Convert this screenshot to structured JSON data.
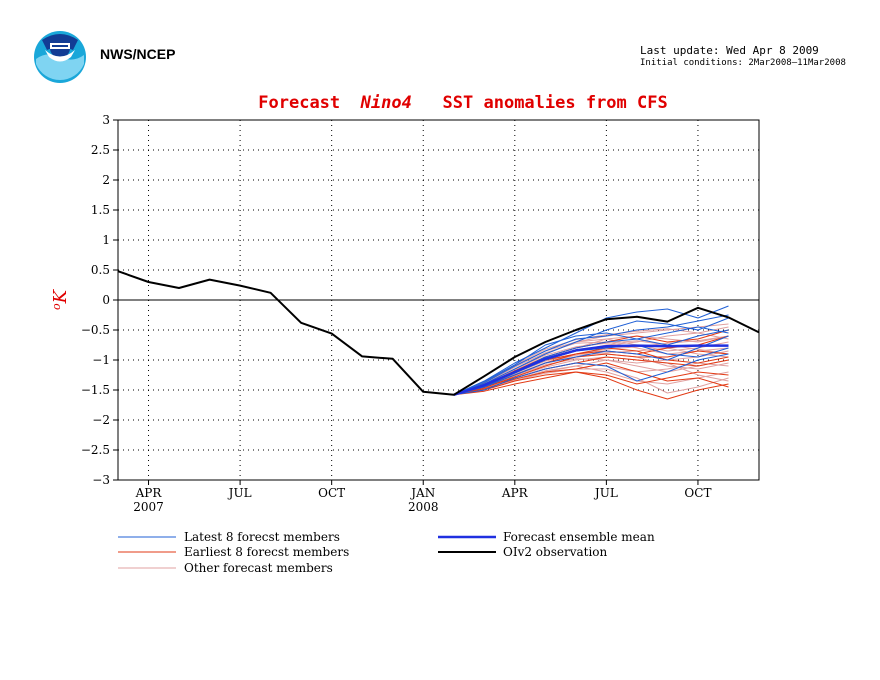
{
  "header": {
    "org": "NWS/NCEP",
    "last_update": "Last update: Wed Apr 8 2009",
    "initial_conditions": "Initial conditions: 2Mar2008–11Mar2008",
    "logo_icon": "noaa-logo-icon"
  },
  "chart_data": {
    "type": "line",
    "title_prefix": "Forecast",
    "title_region": "Nino4",
    "title_suffix": "SST anomalies from CFS",
    "ylabel_unit_sup": "o",
    "ylabel_unit": "K",
    "ylim": [
      -3,
      3
    ],
    "yticks": [
      3,
      2.5,
      2,
      1.5,
      1,
      0.5,
      0,
      -0.5,
      -1,
      -1.5,
      -2,
      -2.5,
      -3
    ],
    "ytick_labels": [
      "3",
      "2.5",
      "2",
      "1.5",
      "1",
      "0.5",
      "0",
      "−0.5",
      "−1",
      "−1.5",
      "−2",
      "−2.5",
      "−3"
    ],
    "xlim": [
      "2007-03",
      "2008-12"
    ],
    "xticks": [
      {
        "date": "2007-04",
        "label": "APR",
        "year": "2007"
      },
      {
        "date": "2007-07",
        "label": "JUL",
        "year": ""
      },
      {
        "date": "2007-10",
        "label": "OCT",
        "year": ""
      },
      {
        "date": "2008-01",
        "label": "JAN",
        "year": "2008"
      },
      {
        "date": "2008-04",
        "label": "APR",
        "year": ""
      },
      {
        "date": "2008-07",
        "label": "JUL",
        "year": ""
      },
      {
        "date": "2008-10",
        "label": "OCT",
        "year": ""
      }
    ],
    "grid": true,
    "zero_line": true,
    "colors": {
      "latest": "#1f5fd6",
      "earliest": "#e23a14",
      "other": "#e0a0a0",
      "mean": "#2030e0",
      "observation": "#000000"
    },
    "observation": {
      "name": "OIv2 observation",
      "x": [
        "2007-03",
        "2007-04",
        "2007-05",
        "2007-06",
        "2007-07",
        "2007-08",
        "2007-09",
        "2007-10",
        "2007-11",
        "2007-12",
        "2008-01",
        "2008-02",
        "2008-03",
        "2008-04",
        "2008-05",
        "2008-06",
        "2008-07",
        "2008-08",
        "2008-09",
        "2008-10",
        "2008-11",
        "2008-12"
      ],
      "y": [
        0.48,
        0.3,
        0.2,
        0.34,
        0.24,
        0.12,
        -0.38,
        -0.56,
        -0.94,
        -0.98,
        -1.53,
        -1.58,
        -1.27,
        -0.95,
        -0.7,
        -0.5,
        -0.32,
        -0.28,
        -0.36,
        -0.13,
        -0.29,
        -0.54
      ]
    },
    "forecast_mean": {
      "name": "Forecast ensemble mean",
      "x": [
        "2008-02",
        "2008-03",
        "2008-04",
        "2008-05",
        "2008-06",
        "2008-07",
        "2008-08",
        "2008-09",
        "2008-10",
        "2008-11"
      ],
      "y": [
        -1.58,
        -1.42,
        -1.2,
        -0.98,
        -0.84,
        -0.77,
        -0.76,
        -0.77,
        -0.76,
        -0.76
      ]
    },
    "latest_members": {
      "name": "Latest 8 forecst members",
      "x": [
        "2008-02",
        "2008-03",
        "2008-04",
        "2008-05",
        "2008-06",
        "2008-07",
        "2008-08",
        "2008-09",
        "2008-10",
        "2008-11"
      ],
      "series": [
        [
          -1.58,
          -1.35,
          -1.05,
          -0.8,
          -0.55,
          -0.3,
          -0.2,
          -0.15,
          -0.3,
          -0.1
        ],
        [
          -1.58,
          -1.4,
          -1.15,
          -0.9,
          -0.7,
          -0.5,
          -0.35,
          -0.4,
          -0.5,
          -0.3
        ],
        [
          -1.58,
          -1.45,
          -1.25,
          -1.05,
          -0.95,
          -0.85,
          -0.9,
          -1.0,
          -0.8,
          -0.6
        ],
        [
          -1.58,
          -1.38,
          -1.1,
          -0.85,
          -0.65,
          -0.6,
          -0.5,
          -0.45,
          -0.35,
          -0.25
        ],
        [
          -1.58,
          -1.5,
          -1.3,
          -1.15,
          -1.05,
          -1.1,
          -1.35,
          -1.2,
          -1.0,
          -0.9
        ],
        [
          -1.58,
          -1.42,
          -1.2,
          -0.95,
          -0.8,
          -0.7,
          -0.65,
          -0.75,
          -0.6,
          -0.5
        ],
        [
          -1.58,
          -1.36,
          -1.08,
          -0.75,
          -0.6,
          -0.55,
          -0.65,
          -0.55,
          -0.45,
          -0.55
        ],
        [
          -1.58,
          -1.44,
          -1.22,
          -1.0,
          -0.85,
          -0.8,
          -0.75,
          -0.9,
          -0.95,
          -0.8
        ]
      ]
    },
    "earliest_members": {
      "name": "Earliest 8 forecst members",
      "x": [
        "2008-02",
        "2008-03",
        "2008-04",
        "2008-05",
        "2008-06",
        "2008-07",
        "2008-08",
        "2008-09",
        "2008-10",
        "2008-11"
      ],
      "series": [
        [
          -1.58,
          -1.45,
          -1.3,
          -1.15,
          -1.05,
          -0.95,
          -1.0,
          -1.05,
          -1.1,
          -1.0
        ],
        [
          -1.58,
          -1.5,
          -1.35,
          -1.25,
          -1.2,
          -1.3,
          -1.5,
          -1.65,
          -1.5,
          -1.4
        ],
        [
          -1.58,
          -1.4,
          -1.2,
          -1.0,
          -0.9,
          -0.85,
          -0.9,
          -0.8,
          -0.75,
          -0.6
        ],
        [
          -1.58,
          -1.48,
          -1.32,
          -1.2,
          -1.15,
          -1.05,
          -1.2,
          -1.35,
          -1.3,
          -1.45
        ],
        [
          -1.58,
          -1.42,
          -1.18,
          -0.95,
          -0.8,
          -0.7,
          -0.6,
          -0.7,
          -0.65,
          -0.5
        ],
        [
          -1.58,
          -1.46,
          -1.28,
          -1.1,
          -0.95,
          -0.9,
          -0.95,
          -0.95,
          -0.85,
          -0.9
        ],
        [
          -1.58,
          -1.52,
          -1.4,
          -1.3,
          -1.2,
          -1.25,
          -1.4,
          -1.3,
          -1.2,
          -1.25
        ],
        [
          -1.58,
          -1.44,
          -1.25,
          -1.05,
          -0.9,
          -0.8,
          -0.85,
          -1.0,
          -1.05,
          -0.95
        ]
      ]
    },
    "other_members": {
      "name": "Other forecast members",
      "x": [
        "2008-02",
        "2008-03",
        "2008-04",
        "2008-05",
        "2008-06",
        "2008-07",
        "2008-08",
        "2008-09",
        "2008-10",
        "2008-11"
      ],
      "series": [
        [
          -1.58,
          -1.4,
          -1.15,
          -0.9,
          -0.7,
          -0.6,
          -0.55,
          -0.5,
          -0.45,
          -0.4
        ],
        [
          -1.58,
          -1.45,
          -1.25,
          -1.05,
          -0.95,
          -0.9,
          -0.95,
          -1.1,
          -1.15,
          -1.05
        ],
        [
          -1.58,
          -1.38,
          -1.1,
          -0.85,
          -0.7,
          -0.65,
          -0.75,
          -0.85,
          -0.8,
          -0.7
        ],
        [
          -1.58,
          -1.5,
          -1.35,
          -1.2,
          -1.1,
          -1.0,
          -1.05,
          -1.0,
          -0.95,
          -0.85
        ],
        [
          -1.58,
          -1.43,
          -1.2,
          -1.0,
          -0.85,
          -0.75,
          -0.7,
          -0.6,
          -0.55,
          -0.45
        ],
        [
          -1.58,
          -1.47,
          -1.3,
          -1.15,
          -1.05,
          -1.1,
          -1.2,
          -1.15,
          -1.05,
          -1.1
        ],
        [
          -1.58,
          -1.41,
          -1.18,
          -0.95,
          -0.8,
          -0.65,
          -0.6,
          -0.65,
          -0.7,
          -0.6
        ],
        [
          -1.58,
          -1.46,
          -1.28,
          -1.12,
          -1.0,
          -0.95,
          -1.0,
          -1.05,
          -1.25,
          -1.35
        ],
        [
          -1.58,
          -1.39,
          -1.12,
          -0.88,
          -0.72,
          -0.7,
          -0.8,
          -0.9,
          -0.85,
          -0.8
        ],
        [
          -1.58,
          -1.44,
          -1.24,
          -1.05,
          -0.92,
          -0.88,
          -0.85,
          -0.8,
          -0.9,
          -0.95
        ],
        [
          -1.58,
          -1.48,
          -1.32,
          -1.18,
          -1.1,
          -1.2,
          -1.35,
          -1.4,
          -1.3,
          -1.2
        ],
        [
          -1.58,
          -1.37,
          -1.08,
          -0.82,
          -0.66,
          -0.58,
          -0.52,
          -0.48,
          -0.55,
          -0.65
        ],
        [
          -1.58,
          -1.45,
          -1.26,
          -1.08,
          -0.98,
          -1.0,
          -1.1,
          -1.2,
          -1.1,
          -1.0
        ],
        [
          -1.58,
          -1.42,
          -1.22,
          -1.02,
          -0.9,
          -0.82,
          -0.78,
          -0.72,
          -0.68,
          -0.6
        ],
        [
          -1.58,
          -1.49,
          -1.34,
          -1.22,
          -1.15,
          -1.15,
          -1.3,
          -1.55,
          -1.45,
          -1.3
        ],
        [
          -1.58,
          -1.4,
          -1.16,
          -0.92,
          -0.78,
          -0.72,
          -0.68,
          -0.75,
          -0.82,
          -0.9
        ]
      ]
    },
    "legend": {
      "latest": "Latest 8 forecst members",
      "earliest": "Earliest 8 forecst members",
      "other": "Other forecast members",
      "mean": "Forecast ensemble mean",
      "observation": "OIv2 observation"
    }
  }
}
